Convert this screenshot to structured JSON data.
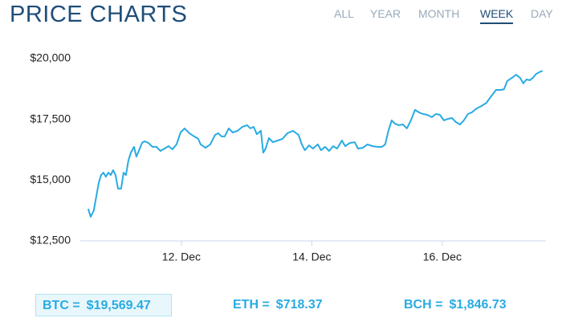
{
  "header": {
    "title": "PRICE CHARTS",
    "tabs": [
      "ALL",
      "YEAR",
      "MONTH",
      "WEEK",
      "DAY"
    ],
    "active_tab": 3
  },
  "chart_data": {
    "type": "line",
    "color": "#29abe2",
    "xlim": [
      10.45,
      17.59
    ],
    "ylim": [
      12500,
      20000
    ],
    "xticks": [
      {
        "value": 12,
        "label": "12. Dec"
      },
      {
        "value": 14,
        "label": "14. Dec"
      },
      {
        "value": 16,
        "label": "16. Dec"
      }
    ],
    "yticks": [
      {
        "value": 12500,
        "label": "$12,500"
      },
      {
        "value": 15000,
        "label": "$15,000"
      },
      {
        "value": 17500,
        "label": "$17,500"
      },
      {
        "value": 20000,
        "label": "$20,000"
      }
    ],
    "x": [
      10.572,
      10.609,
      10.658,
      10.695,
      10.732,
      10.769,
      10.806,
      10.843,
      10.88,
      10.917,
      10.954,
      10.991,
      11.028,
      11.077,
      11.114,
      11.151,
      11.188,
      11.225,
      11.274,
      11.311,
      11.348,
      11.397,
      11.434,
      11.495,
      11.557,
      11.618,
      11.68,
      11.742,
      11.803,
      11.865,
      11.926,
      11.988,
      12.049,
      12.123,
      12.197,
      12.258,
      12.295,
      12.369,
      12.443,
      12.517,
      12.566,
      12.615,
      12.665,
      12.726,
      12.788,
      12.862,
      12.935,
      13.009,
      13.058,
      13.108,
      13.157,
      13.218,
      13.255,
      13.292,
      13.342,
      13.403,
      13.477,
      13.551,
      13.625,
      13.711,
      13.797,
      13.846,
      13.895,
      13.957,
      14.018,
      14.092,
      14.142,
      14.203,
      14.265,
      14.326,
      14.388,
      14.462,
      14.511,
      14.585,
      14.658,
      14.708,
      14.782,
      14.855,
      14.929,
      15.003,
      15.077,
      15.126,
      15.175,
      15.225,
      15.274,
      15.335,
      15.397,
      15.458,
      15.52,
      15.582,
      15.643,
      15.705,
      15.766,
      15.84,
      15.902,
      15.963,
      16.025,
      16.086,
      16.148,
      16.209,
      16.271,
      16.332,
      16.394,
      16.455,
      16.529,
      16.603,
      16.677,
      16.751,
      16.825,
      16.898,
      16.948,
      16.997,
      17.071,
      17.132,
      17.194,
      17.243,
      17.292,
      17.342,
      17.391,
      17.44,
      17.489,
      17.538
    ],
    "values": [
      13820,
      13490,
      13760,
      14320,
      14880,
      15210,
      15310,
      15140,
      15310,
      15210,
      15410,
      15210,
      14650,
      14650,
      15310,
      15210,
      15800,
      16130,
      16370,
      15970,
      16200,
      16530,
      16600,
      16530,
      16370,
      16370,
      16200,
      16300,
      16400,
      16270,
      16470,
      16960,
      17130,
      16930,
      16800,
      16700,
      16470,
      16330,
      16470,
      16860,
      16930,
      16800,
      16800,
      17130,
      16960,
      17030,
      17190,
      17260,
      17130,
      17190,
      16890,
      17030,
      16130,
      16300,
      16730,
      16560,
      16630,
      16700,
      16930,
      17030,
      16860,
      16470,
      16230,
      16430,
      16300,
      16470,
      16230,
      16370,
      16200,
      16400,
      16300,
      16630,
      16400,
      16530,
      16560,
      16300,
      16330,
      16470,
      16400,
      16370,
      16370,
      16470,
      17030,
      17460,
      17320,
      17260,
      17290,
      17130,
      17460,
      17890,
      17790,
      17720,
      17690,
      17590,
      17720,
      17690,
      17460,
      17520,
      17560,
      17390,
      17290,
      17460,
      17720,
      17790,
      17950,
      18050,
      18180,
      18450,
      18710,
      18710,
      18740,
      19080,
      19210,
      19340,
      19210,
      18980,
      19140,
      19110,
      19210,
      19370,
      19440,
      19500
    ]
  },
  "tickers": [
    {
      "name": "BTC =",
      "price": "$19,569.47"
    },
    {
      "name": "ETH =",
      "price": "$718.37"
    },
    {
      "name": "BCH =",
      "price": "$1,846.73"
    }
  ],
  "selected_ticker": 0
}
